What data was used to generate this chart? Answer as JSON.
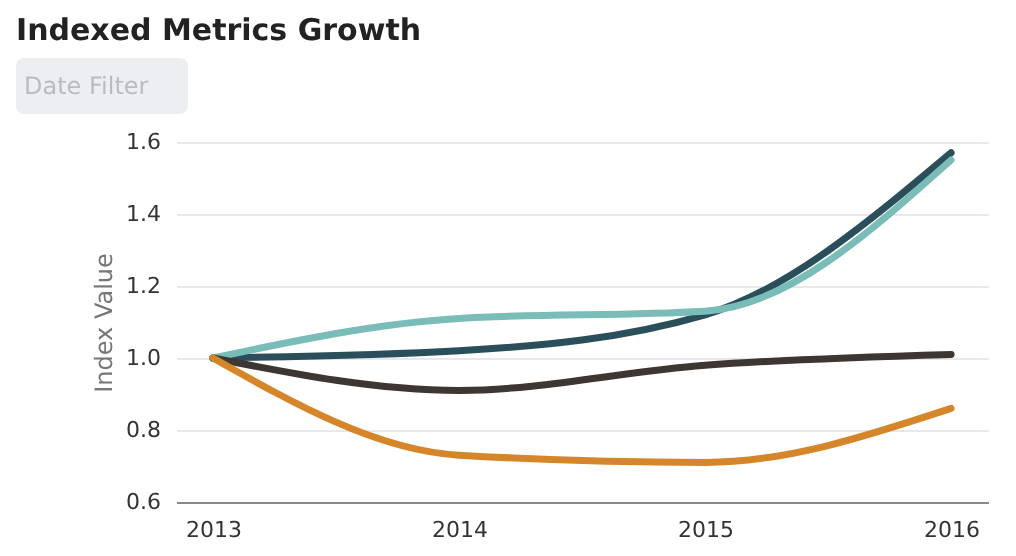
{
  "chart_data": {
    "type": "line",
    "title": "Indexed Metrics Growth",
    "ylabel": "Index Value",
    "categories": [
      "2013",
      "2014",
      "2015",
      "2016"
    ],
    "series": [
      {
        "color": "#2a4f5a",
        "values": [
          1.0,
          1.02,
          1.12,
          1.57
        ]
      },
      {
        "color": "#79bcb8",
        "values": [
          1.0,
          1.11,
          1.13,
          1.55
        ]
      },
      {
        "color": "#3d3632",
        "values": [
          1.0,
          0.91,
          0.98,
          1.01
        ]
      },
      {
        "color": "#d6862a",
        "values": [
          1.0,
          0.73,
          0.71,
          0.86
        ]
      }
    ],
    "annotations": [
      "Date Filter"
    ],
    "ylim": [
      0.6,
      1.6
    ],
    "yticks": [
      0.6,
      0.8,
      {
        "value": 1.0,
        "label": "1.0"
      },
      1.2,
      1.4,
      1.6
    ],
    "grid": "y",
    "legend": false
  }
}
